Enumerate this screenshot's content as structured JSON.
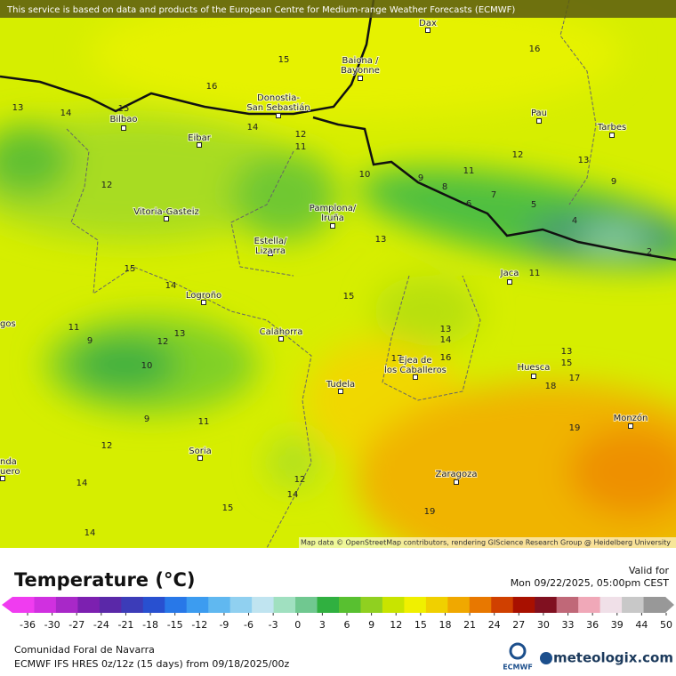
{
  "banner": "This service is based on data and products of the European Centre for Medium-range Weather Forecasts (ECMWF)",
  "cities": [
    [
      "Dax"
    ],
    [
      "Baiona /",
      "Bayonne"
    ],
    [
      "Donostia-",
      "San Sebastián"
    ],
    [
      "Pau"
    ],
    [
      "Tarbes"
    ],
    [
      "Bilbao"
    ],
    [
      "Eibar"
    ],
    [
      "Vitoria-Gasteiz"
    ],
    [
      "Pamplona/",
      "Iruña"
    ],
    [
      "Estella/",
      "Lizarra"
    ],
    [
      "Jaca"
    ],
    [
      "Logroño"
    ],
    [
      "Calahorra"
    ],
    [
      "Ejea de",
      "los Caballeros"
    ],
    [
      "Huesca"
    ],
    [
      "Tudela"
    ],
    [
      "Monzón"
    ],
    [
      "Soria"
    ],
    [
      "Zaragoza"
    ],
    [
      "gos"
    ],
    [
      "nda",
      "uero"
    ]
  ],
  "contour_labels": [
    15,
    16,
    16,
    13,
    14,
    15,
    14,
    12,
    11,
    12,
    11,
    13,
    9,
    10,
    9,
    8,
    7,
    6,
    5,
    4,
    2,
    12,
    13,
    11,
    15,
    14,
    15,
    11,
    9,
    12,
    13,
    10,
    13,
    14,
    16,
    17,
    13,
    15,
    17,
    18,
    9,
    11,
    19,
    12,
    14,
    12,
    14,
    15,
    19,
    14
  ],
  "attribution": "Map data © OpenStreetMap contributors, rendering GIScience Research Group @ Heidelberg University",
  "legend": {
    "title": "Temperature (°C)",
    "valid_label": "Valid for",
    "valid_time": "Mon 09/22/2025, 05:00pm CEST",
    "ticks": [
      -36,
      -30,
      -27,
      -24,
      -21,
      -18,
      -15,
      -12,
      -9,
      -6,
      -3,
      0,
      3,
      6,
      9,
      12,
      15,
      18,
      21,
      24,
      27,
      30,
      33,
      36,
      39,
      44,
      50
    ],
    "colors": [
      "#f03cf0",
      "#d030e0",
      "#a828c8",
      "#7c20b0",
      "#5a28a8",
      "#3c3cb8",
      "#2850d0",
      "#2878e8",
      "#3c9cf0",
      "#60b8f0",
      "#90d0f0",
      "#c0e4f0",
      "#a0e0c0",
      "#70c890",
      "#30b040",
      "#58c030",
      "#90d020",
      "#c8e400",
      "#f0f000",
      "#f0d000",
      "#f0a800",
      "#e87800",
      "#d04000",
      "#a81000",
      "#801020",
      "#c06878",
      "#f0a8b8",
      "#f0e0e8",
      "#c8c8c8",
      "#989898"
    ]
  },
  "footer": {
    "region": "Comunidad Foral de Navarra",
    "model": "ECMWF IFS HRES 0z/12z (15 days) from  09/18/2025/00z",
    "ecmwf_logo": "ECMWF",
    "brand": "meteologix.com"
  }
}
